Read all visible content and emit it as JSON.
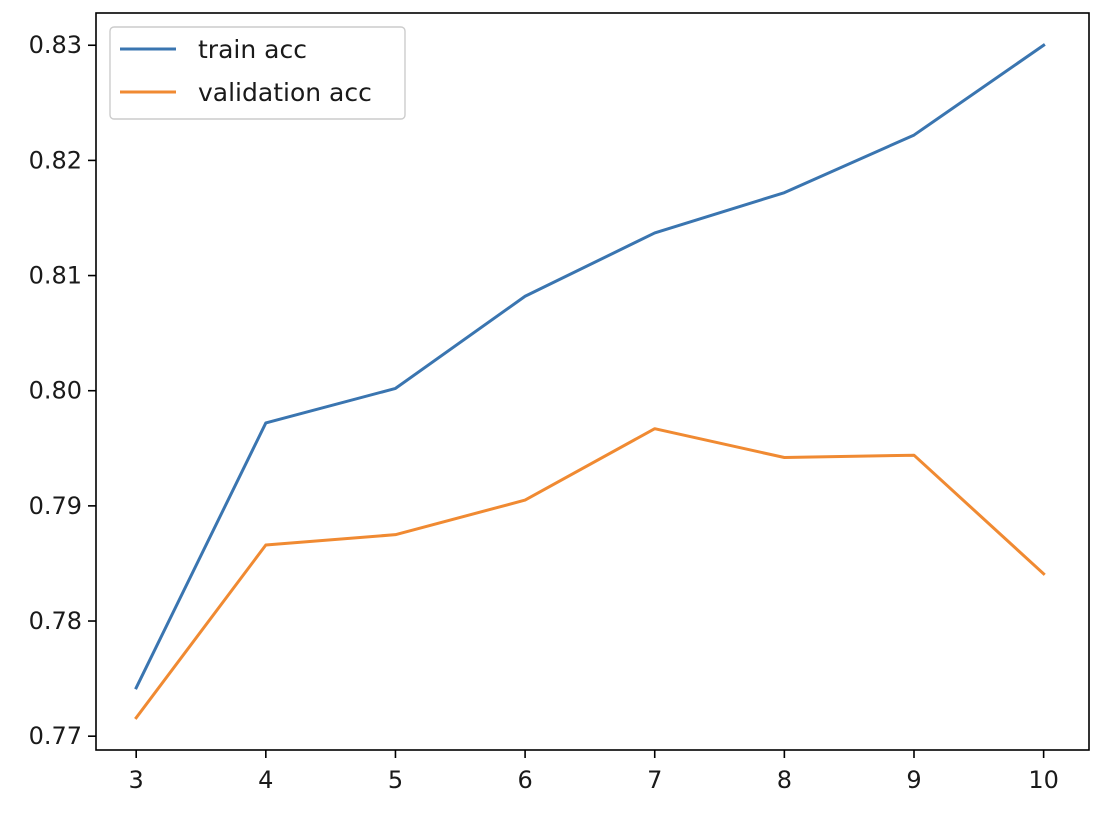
{
  "chart_data": {
    "type": "line",
    "title": "",
    "xlabel": "",
    "ylabel": "",
    "x": [
      3,
      4,
      5,
      6,
      7,
      8,
      9,
      10
    ],
    "xlim": [
      2.69,
      10.35
    ],
    "ylim": [
      0.7688,
      0.8328
    ],
    "xticks": [
      "3",
      "4",
      "5",
      "6",
      "7",
      "8",
      "9",
      "10"
    ],
    "yticks": [
      "0.77",
      "0.78",
      "0.79",
      "0.80",
      "0.81",
      "0.82",
      "0.83"
    ],
    "grid": false,
    "legend_position": "upper left",
    "series": [
      {
        "name": "train acc",
        "color": "#3a75b0",
        "values": [
          0.7742,
          0.7972,
          0.8002,
          0.8082,
          0.8137,
          0.8172,
          0.8222,
          0.83
        ]
      },
      {
        "name": "validation acc",
        "color": "#f08a32",
        "values": [
          0.7716,
          0.7866,
          0.7875,
          0.7905,
          0.7967,
          0.7942,
          0.7944,
          0.7841
        ]
      }
    ]
  }
}
